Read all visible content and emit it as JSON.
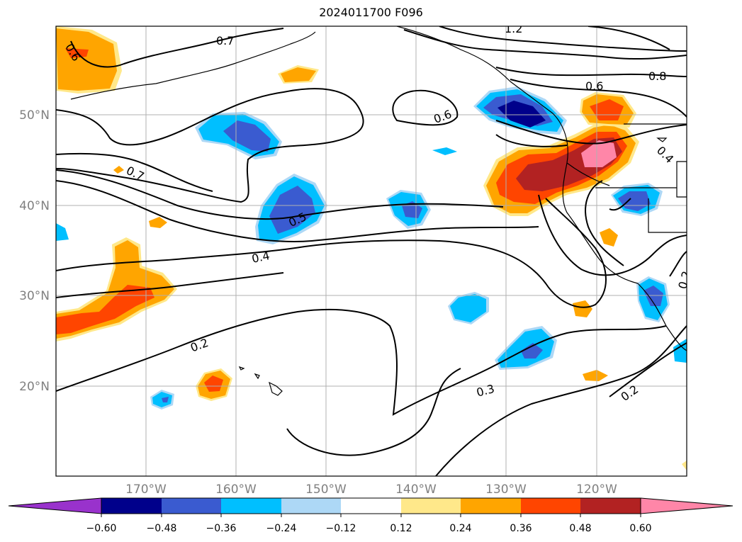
{
  "title": "2024011700 F096",
  "lat_labels": [
    "50°N",
    "40°N",
    "30°N",
    "20°N"
  ],
  "lon_labels": [
    "170°W",
    "160°W",
    "150°W",
    "140°W",
    "130°W",
    "120°W"
  ],
  "contour_labels": [
    "0.7",
    "1.2",
    "0.6",
    "0.6",
    "0.8",
    "0.6",
    "0.7",
    "0.5",
    "0.4",
    "0.2",
    "0.3",
    "0.2",
    "0.2",
    "0.4"
  ],
  "colorbar": {
    "ticks": [
      "−0.60",
      "−0.48",
      "−0.36",
      "−0.24",
      "−0.12",
      "0.12",
      "0.24",
      "0.36",
      "0.48",
      "0.60"
    ],
    "colors": [
      "#9932cc",
      "#00008b",
      "#3a5bd0",
      "#00bfff",
      "#add8f6",
      "#ffffff",
      "#ffe88a",
      "#ffa500",
      "#ff4500",
      "#b22222",
      "#ff86a8"
    ]
  },
  "colors": {
    "grid": "#b0b0b0",
    "axis_label": "#808080",
    "contour": "#000000"
  }
}
